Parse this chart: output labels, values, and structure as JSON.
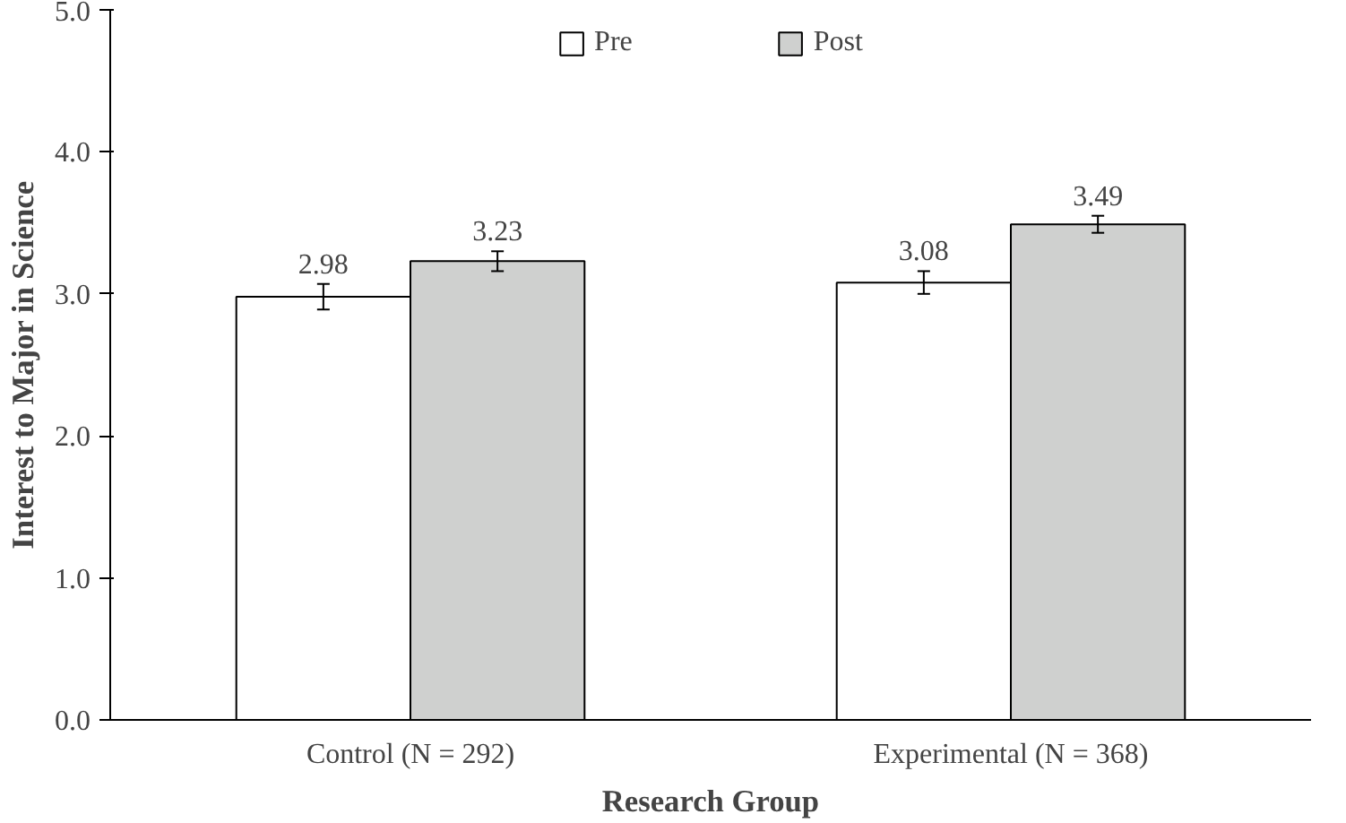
{
  "chart_data": {
    "type": "bar",
    "xlabel": "Research Group",
    "ylabel": "Interest to Major in Science",
    "categories": [
      "Control (N = 292)",
      "Experimental (N = 368)"
    ],
    "series": [
      {
        "name": "Pre",
        "color": "#ffffff",
        "values": [
          2.98,
          3.08
        ],
        "errors": [
          0.09,
          0.08
        ]
      },
      {
        "name": "Post",
        "color": "#cfd0cf",
        "values": [
          3.23,
          3.49
        ],
        "errors": [
          0.07,
          0.06
        ]
      }
    ],
    "ylim": [
      0,
      5
    ],
    "yticks": [
      {
        "value": 0,
        "label": "0.0"
      },
      {
        "value": 1,
        "label": "1.0"
      },
      {
        "value": 2,
        "label": "2.0"
      },
      {
        "value": 3,
        "label": "3.0"
      },
      {
        "value": 4,
        "label": "4.0"
      },
      {
        "value": 5,
        "label": "5.0"
      }
    ],
    "data_labels": true,
    "grid": false,
    "legend": "top"
  }
}
